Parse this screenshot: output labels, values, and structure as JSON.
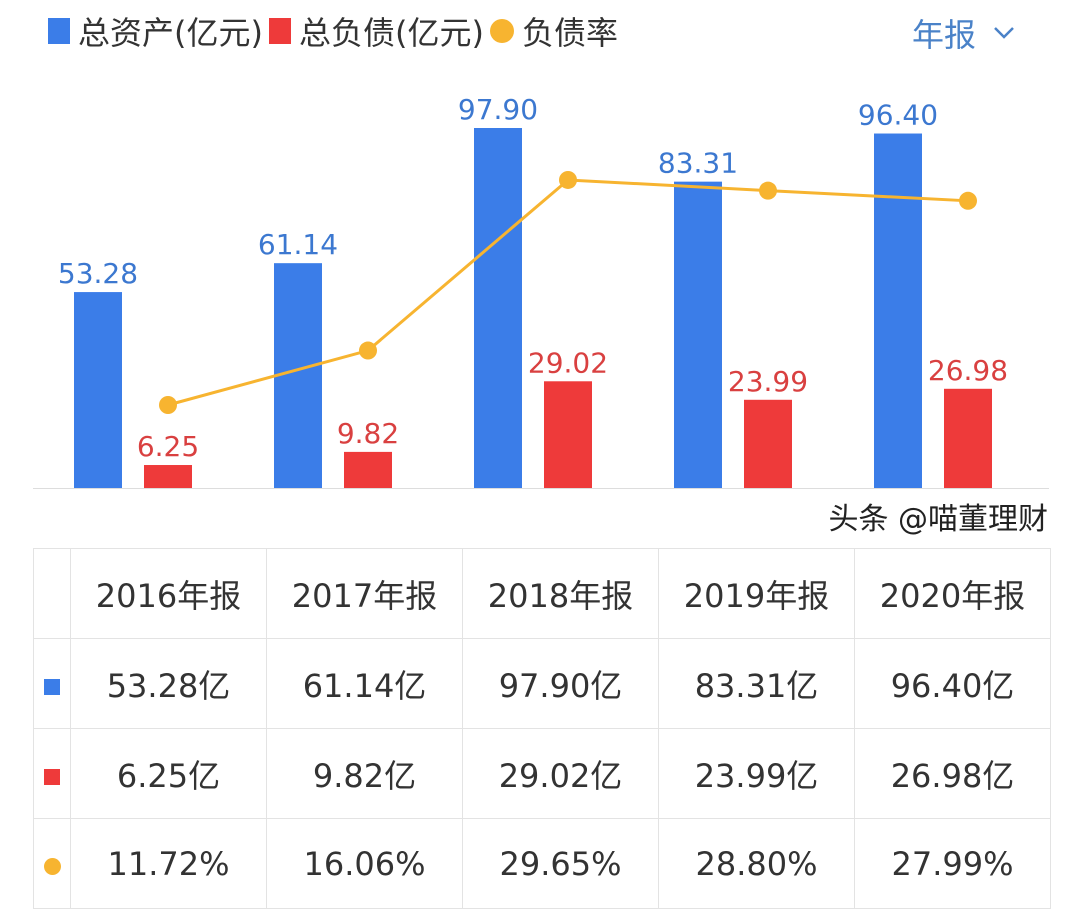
{
  "legend": [
    {
      "label": "总资产(亿元)",
      "color": "#3b7de8",
      "shape": "square"
    },
    {
      "label": "总负债(亿元)",
      "color": "#ee3a3a",
      "shape": "square"
    },
    {
      "label": "负债率",
      "color": "#f7b430",
      "shape": "circle"
    }
  ],
  "period_selector": {
    "label": "年报",
    "icon": "chevron-down-icon"
  },
  "chart_data": {
    "type": "bar",
    "categories": [
      "2016年报",
      "2017年报",
      "2018年报",
      "2019年报",
      "2020年报"
    ],
    "series": [
      {
        "name": "总资产(亿元)",
        "type": "bar",
        "color": "#3b7de8",
        "values": [
          53.28,
          61.14,
          97.9,
          83.31,
          96.4
        ],
        "labels": [
          "53.28",
          "61.14",
          "97.90",
          "83.31",
          "96.40"
        ]
      },
      {
        "name": "总负债(亿元)",
        "type": "bar",
        "color": "#ee3a3a",
        "values": [
          6.25,
          9.82,
          29.02,
          23.99,
          26.98
        ],
        "labels": [
          "6.25",
          "9.82",
          "29.02",
          "23.99",
          "26.98"
        ]
      },
      {
        "name": "负债率",
        "type": "line",
        "color": "#f7b430",
        "values": [
          11.72,
          16.06,
          29.65,
          28.8,
          27.99
        ]
      }
    ],
    "grid": false,
    "legend_position": "top-left"
  },
  "table": {
    "headers": [
      "2016年报",
      "2017年报",
      "2018年报",
      "2019年报",
      "2020年报"
    ],
    "rows": [
      {
        "color": "#3b7de8",
        "shape": "square",
        "cells": [
          "53.28亿",
          "61.14亿",
          "97.90亿",
          "83.31亿",
          "96.40亿"
        ]
      },
      {
        "color": "#ee3a3a",
        "shape": "square",
        "cells": [
          "6.25亿",
          "9.82亿",
          "29.02亿",
          "23.99亿",
          "26.98亿"
        ]
      },
      {
        "color": "#f7b430",
        "shape": "circle",
        "cells": [
          "11.72%",
          "16.06%",
          "29.65%",
          "28.80%",
          "27.99%"
        ]
      }
    ]
  },
  "watermark": "头条 @喵董理财"
}
